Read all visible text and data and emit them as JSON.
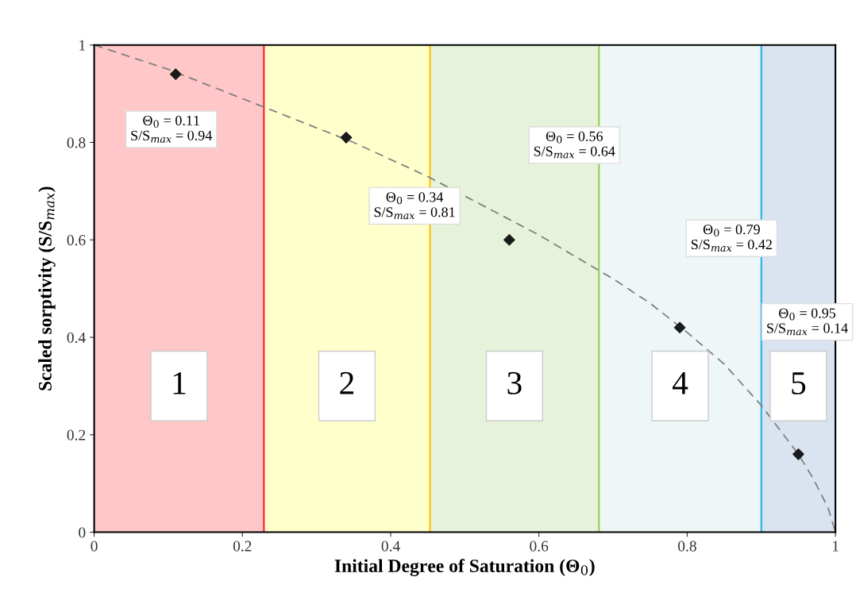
{
  "chart_data": {
    "type": "scatter",
    "xlabel": "Initial Degree of Saturation (Θ$_{0}$)",
    "ylabel": "Scaled sorptivity (S/S$_{max}$)",
    "xlim": [
      0,
      1
    ],
    "ylim": [
      0,
      1
    ],
    "xticks": [
      0,
      0.2,
      0.4,
      0.6,
      0.8,
      1
    ],
    "yticks": [
      0,
      0.2,
      0.4,
      0.6,
      0.8,
      1
    ],
    "grid": false,
    "series": [
      {
        "type": "line",
        "color": "#808080",
        "line_style": "dashed",
        "marker": "none",
        "x": [
          0,
          0.05,
          0.1,
          0.15,
          0.2,
          0.25,
          0.3,
          0.35,
          0.4,
          0.45,
          0.5,
          0.55,
          0.6,
          0.65,
          0.7,
          0.75,
          0.8,
          0.85,
          0.9,
          0.93,
          0.95,
          0.97,
          0.99,
          1.0
        ],
        "values": [
          1,
          0.975,
          0.95,
          0.92,
          0.89,
          0.86,
          0.83,
          0.8,
          0.765,
          0.73,
          0.69,
          0.65,
          0.61,
          0.565,
          0.52,
          0.47,
          0.41,
          0.345,
          0.26,
          0.2,
          0.16,
          0.11,
          0.05,
          0
        ]
      },
      {
        "type": "scatter",
        "color": "#1a1a1a",
        "marker": "diamond",
        "x": [
          0.11,
          0.34,
          0.56,
          0.79,
          0.95
        ],
        "values": [
          0.94,
          0.81,
          0.6,
          0.42,
          0.16
        ]
      }
    ],
    "bands": [
      {
        "axis": "x",
        "from": 0,
        "to": 0.229,
        "label": "1",
        "color": "#ffc7c7"
      },
      {
        "axis": "x",
        "from": 0.229,
        "to": 0.453,
        "label": "2",
        "color": "#ffffcc"
      },
      {
        "axis": "x",
        "from": 0.453,
        "to": 0.681,
        "label": "3",
        "color": "#e6f2d9"
      },
      {
        "axis": "x",
        "from": 0.681,
        "to": 0.9,
        "label": "4",
        "color": "#eef6f8"
      },
      {
        "axis": "x",
        "from": 0.9,
        "to": 1,
        "label": "5",
        "color": "#dae3f0"
      }
    ],
    "ref_lines": [
      {
        "axis": "x",
        "value": 0.229,
        "color": "#ff2020"
      },
      {
        "axis": "x",
        "value": 0.453,
        "color": "#ffc000"
      },
      {
        "axis": "x",
        "value": 0.681,
        "color": "#92d050"
      },
      {
        "axis": "x",
        "value": 0.9,
        "color": "#20b0f0"
      }
    ],
    "annotations": [
      "Θ$_{0}$ = 0.11\nS/S$_{max}$ = 0.94",
      "Θ$_{0}$ = 0.34\nS/S$_{max}$ = 0.81",
      "Θ$_{0}$ = 0.56\nS/S$_{max}$ = 0.64",
      "Θ$_{0}$ = 0.79\nS/S$_{max}$ = 0.42",
      "Θ$_{0}$ = 0.95\nS/S$_{max}$ = 0.14"
    ]
  }
}
